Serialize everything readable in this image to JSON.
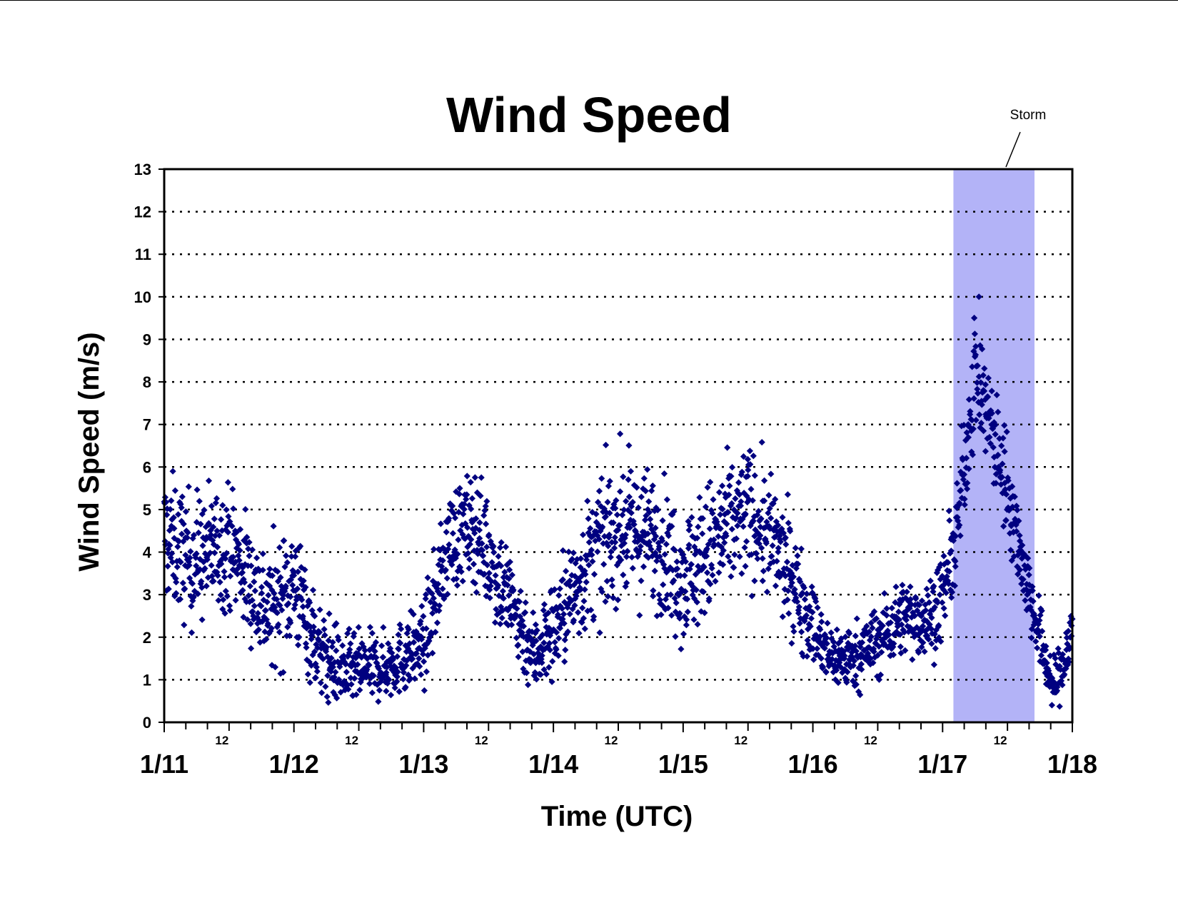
{
  "chart_data": {
    "type": "scatter",
    "title": "Wind Speed",
    "xlabel": "Time (UTC)",
    "ylabel": "Wind Speed (m/s)",
    "ylim": [
      0,
      13
    ],
    "yticks": [
      0,
      1,
      2,
      3,
      4,
      5,
      6,
      7,
      8,
      9,
      10,
      11,
      12,
      13
    ],
    "xlim": [
      "1/11",
      "1/18"
    ],
    "xticks_major": [
      "1/11",
      "1/12",
      "1/13",
      "1/14",
      "1/15",
      "1/16",
      "1/17",
      "1/18"
    ],
    "xticks_minor": [
      "12",
      "12",
      "12",
      "12",
      "12",
      "12",
      "12"
    ],
    "grid": "horizontal dotted",
    "marker_color": "#000080",
    "marker": "diamond",
    "annotation": {
      "label": "Storm",
      "x_range": [
        "1/17 02:00",
        "1/17 17:00"
      ],
      "fill_color": "#b3b3f7"
    },
    "series": [
      {
        "envelope": {
          "day_unit": "days since 1/11 00:00",
          "x": [
            0.0,
            0.2,
            0.5,
            0.8,
            1.0,
            1.2,
            1.4,
            1.7,
            2.0,
            2.2,
            2.4,
            2.6,
            2.85,
            3.0,
            3.3,
            3.5,
            3.8,
            4.0,
            4.3,
            4.5,
            4.7,
            4.9,
            5.1,
            5.3,
            5.5,
            5.7,
            5.9,
            6.0,
            6.1,
            6.25,
            6.35,
            6.5,
            6.6,
            6.7,
            6.85,
            6.95,
            7.0
          ],
          "mean": [
            4.4,
            3.8,
            4.2,
            2.6,
            3.3,
            1.6,
            1.2,
            1.3,
            1.8,
            4.3,
            4.6,
            3.3,
            1.6,
            2.2,
            3.9,
            4.6,
            4.3,
            3.4,
            4.4,
            5.0,
            4.2,
            3.0,
            1.6,
            1.5,
            1.9,
            2.5,
            2.4,
            3.0,
            4.2,
            8.3,
            7.2,
            5.5,
            4.0,
            2.6,
            0.8,
            1.5,
            2.3
          ],
          "spread": [
            1.4,
            1.4,
            1.3,
            1.3,
            1.4,
            1.0,
            0.8,
            0.7,
            0.9,
            1.1,
            1.2,
            1.2,
            0.9,
            1.1,
            1.4,
            1.5,
            1.4,
            1.4,
            1.5,
            1.4,
            1.3,
            1.1,
            0.7,
            0.7,
            0.8,
            0.8,
            0.9,
            0.9,
            1.0,
            1.4,
            1.2,
            1.1,
            0.9,
            0.8,
            0.6,
            0.7,
            0.8
          ]
        }
      }
    ]
  }
}
